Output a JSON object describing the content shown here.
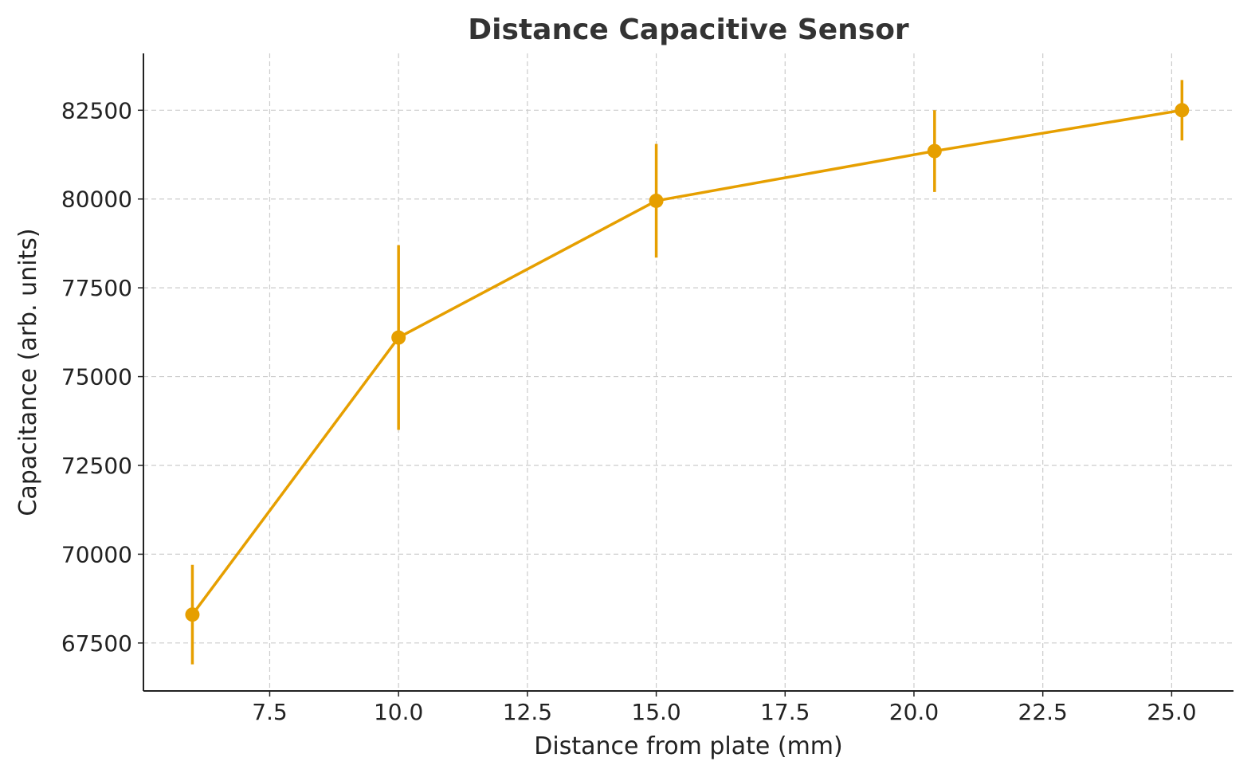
{
  "chart_data": {
    "type": "line",
    "title": "Distance Capacitive Sensor",
    "xlabel": "Distance from plate (mm)",
    "ylabel": "Capacitance (arb. units)",
    "xlim": [
      5.05,
      26.2
    ],
    "ylim": [
      66150,
      84100
    ],
    "x_ticks": [
      7.5,
      10.0,
      12.5,
      15.0,
      17.5,
      20.0,
      22.5,
      25.0
    ],
    "x_tick_labels": [
      "7.5",
      "10.0",
      "12.5",
      "15.0",
      "17.5",
      "20.0",
      "22.5",
      "25.0"
    ],
    "y_ticks": [
      67500,
      70000,
      72500,
      75000,
      77500,
      80000,
      82500
    ],
    "y_tick_labels": [
      "67500",
      "70000",
      "72500",
      "75000",
      "77500",
      "80000",
      "82500"
    ],
    "grid": true,
    "color": "#E69F00",
    "series": [
      {
        "x": [
          6.0,
          10.0,
          15.0,
          20.4,
          25.2
        ],
        "y": [
          68300,
          76100,
          79950,
          81350,
          82500
        ],
        "yerr": [
          1400,
          2600,
          1600,
          1150,
          850
        ]
      }
    ]
  }
}
